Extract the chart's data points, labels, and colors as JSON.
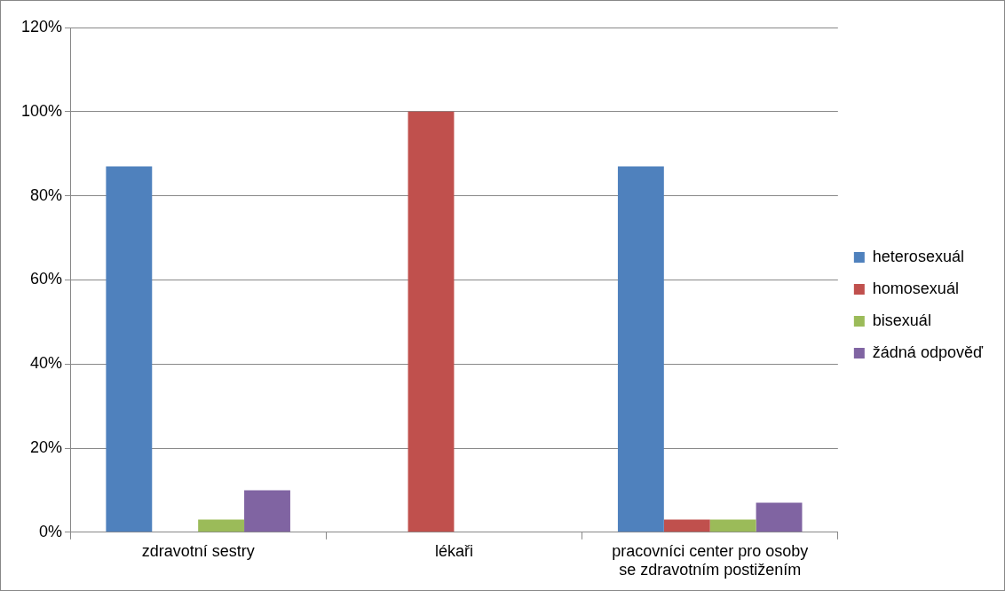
{
  "chart_data": {
    "type": "bar",
    "categories": [
      "zdravotní sestry",
      "lékaři",
      "pracovníci center pro osoby se zdravotním postižením"
    ],
    "series": [
      {
        "name": "heterosexuál",
        "color": "#4f81bd",
        "values": [
          87,
          0,
          87
        ]
      },
      {
        "name": "homosexuál",
        "color": "#c0504d",
        "values": [
          0,
          100,
          3
        ]
      },
      {
        "name": "bisexuál",
        "color": "#9bbb59",
        "values": [
          3,
          0,
          3
        ]
      },
      {
        "name": "žádná odpověď",
        "color": "#8064a2",
        "values": [
          10,
          0,
          7
        ]
      }
    ],
    "ylim": [
      0,
      120
    ],
    "yticks": [
      {
        "value": 0,
        "label": "0%"
      },
      {
        "value": 20,
        "label": "20%"
      },
      {
        "value": 40,
        "label": "40%"
      },
      {
        "value": 60,
        "label": "60%"
      },
      {
        "value": 80,
        "label": "80%"
      },
      {
        "value": 100,
        "label": "100%"
      },
      {
        "value": 120,
        "label": "120%"
      }
    ],
    "grid": "y",
    "legend": "right"
  }
}
